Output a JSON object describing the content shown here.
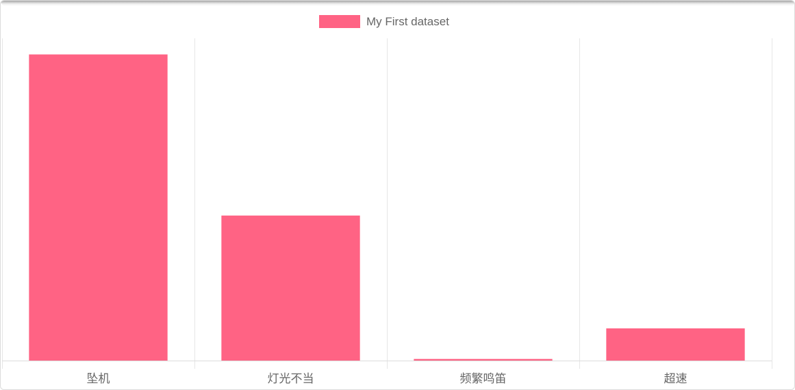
{
  "chart_data": {
    "type": "bar",
    "categories": [
      "坠机",
      "灯光不当",
      "频繁鸣笛",
      "超速"
    ],
    "series": [
      {
        "name": "My First dataset",
        "values": [
          95,
          45,
          0.5,
          10
        ],
        "color": "#ff6384"
      }
    ],
    "ylim": [
      0,
      100
    ],
    "grid": true,
    "legend_position": "top"
  }
}
